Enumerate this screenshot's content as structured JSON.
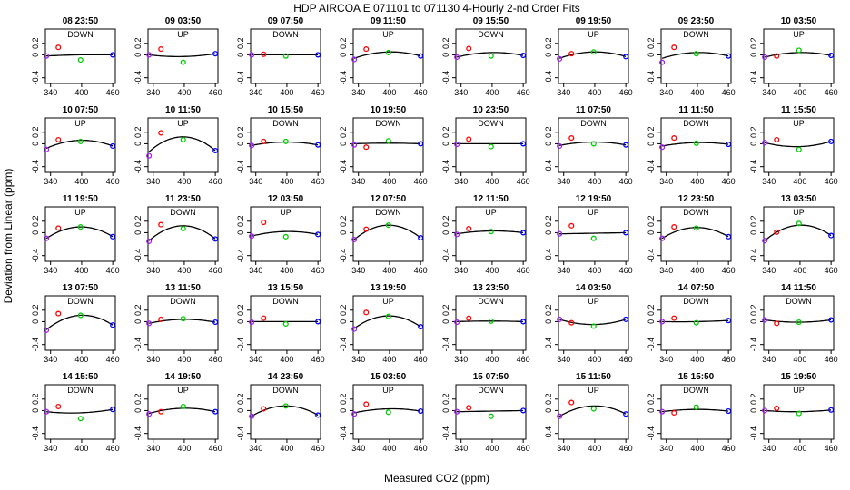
{
  "chart_data": {
    "type": "scatter",
    "title": "HDP    AIRCOA E    071101 to 071130    4-Hourly 2-nd Order Fits",
    "xlabel": "Measured CO2 (ppm)",
    "ylabel": "Deviation from Linear (ppm)",
    "xlim": [
      330,
      465
    ],
    "ylim": [
      -0.5,
      0.45
    ],
    "xticks": [
      340,
      400,
      460
    ],
    "xtick_labels": [
      "340",
      "400",
      "460"
    ],
    "yticks": [
      -0.4,
      0.0,
      0.2
    ],
    "ytick_labels": [
      "-0.4",
      "0",
      "0.2"
    ],
    "rows": 5,
    "cols": 8,
    "point_x": [
      332,
      355,
      398,
      460
    ],
    "point_colors": [
      "#a020f0",
      "#ff0000",
      "#00cc00",
      "#0000ff"
    ],
    "curve_color": "#000000",
    "panels": [
      {
        "title": "08 23:50",
        "dir": "DOWN",
        "points": [
          -0.02,
          0.13,
          -0.09,
          0.0
        ],
        "fit": [
          -0.02,
          0.0,
          0.0,
          0.0
        ]
      },
      {
        "title": "09 03:50",
        "dir": "UP",
        "points": [
          0.0,
          0.1,
          -0.13,
          0.02
        ],
        "fit": [
          0.0,
          -0.02,
          -0.03,
          0.02
        ]
      },
      {
        "title": "09 07:50",
        "dir": "DOWN",
        "points": [
          0.0,
          0.01,
          -0.02,
          0.0
        ],
        "fit": [
          0.0,
          0.0,
          0.0,
          0.0
        ]
      },
      {
        "title": "09 11:50",
        "dir": "UP",
        "points": [
          -0.08,
          0.1,
          0.04,
          -0.02
        ],
        "fit": [
          -0.06,
          0.04,
          0.05,
          -0.02
        ]
      },
      {
        "title": "09 15:50",
        "dir": "DOWN",
        "points": [
          -0.04,
          0.11,
          -0.02,
          -0.01
        ],
        "fit": [
          -0.04,
          0.03,
          0.04,
          -0.01
        ]
      },
      {
        "title": "09 19:50",
        "dir": "UP",
        "points": [
          -0.07,
          0.02,
          0.05,
          -0.03
        ],
        "fit": [
          -0.06,
          0.02,
          0.05,
          -0.03
        ]
      },
      {
        "title": "09 23:50",
        "dir": "DOWN",
        "points": [
          -0.13,
          0.13,
          0.02,
          -0.02
        ],
        "fit": [
          -0.06,
          0.03,
          0.04,
          -0.02
        ]
      },
      {
        "title": "10 03:50",
        "dir": "UP",
        "points": [
          -0.04,
          -0.02,
          0.08,
          -0.01
        ],
        "fit": [
          -0.04,
          0.02,
          0.04,
          -0.01
        ]
      },
      {
        "title": "10 07:50",
        "dir": "UP",
        "points": [
          -0.1,
          0.07,
          0.04,
          -0.04
        ],
        "fit": [
          -0.08,
          0.03,
          0.06,
          -0.04
        ]
      },
      {
        "title": "10 11:50",
        "dir": "UP",
        "points": [
          -0.21,
          0.19,
          0.07,
          -0.12
        ],
        "fit": [
          -0.14,
          0.05,
          0.12,
          -0.12
        ]
      },
      {
        "title": "10 15:50",
        "dir": "DOWN",
        "points": [
          -0.03,
          0.04,
          0.04,
          -0.02
        ],
        "fit": [
          -0.03,
          0.02,
          0.03,
          -0.02
        ]
      },
      {
        "title": "10 19:50",
        "dir": "DOWN",
        "points": [
          -0.02,
          -0.06,
          0.05,
          0.0
        ],
        "fit": [
          0.0,
          0.01,
          0.01,
          0.0
        ]
      },
      {
        "title": "10 23:50",
        "dir": "DOWN",
        "points": [
          -0.01,
          0.08,
          -0.05,
          0.0
        ],
        "fit": [
          0.0,
          0.0,
          0.0,
          0.0
        ]
      },
      {
        "title": "11 07:50",
        "dir": "DOWN",
        "points": [
          -0.04,
          0.1,
          0.0,
          -0.02
        ],
        "fit": [
          -0.03,
          0.01,
          0.03,
          -0.02
        ]
      },
      {
        "title": "11 11:50",
        "dir": "DOWN",
        "points": [
          -0.06,
          0.1,
          0.01,
          -0.01
        ],
        "fit": [
          -0.04,
          0.0,
          0.02,
          -0.01
        ]
      },
      {
        "title": "11 15:50",
        "dir": "UP",
        "points": [
          0.02,
          0.07,
          -0.1,
          0.04
        ],
        "fit": [
          0.02,
          -0.03,
          -0.05,
          0.04
        ]
      },
      {
        "title": "11 19:50",
        "dir": "UP",
        "points": [
          -0.1,
          0.08,
          0.1,
          -0.07
        ],
        "fit": [
          -0.1,
          0.05,
          0.1,
          -0.07
        ]
      },
      {
        "title": "11 23:50",
        "dir": "DOWN",
        "points": [
          -0.15,
          0.14,
          0.07,
          -0.11
        ],
        "fit": [
          -0.14,
          0.06,
          0.12,
          -0.11
        ]
      },
      {
        "title": "12 03:50",
        "dir": "UP",
        "points": [
          -0.06,
          0.18,
          -0.07,
          -0.03
        ],
        "fit": [
          -0.06,
          0.01,
          0.02,
          -0.03
        ]
      },
      {
        "title": "12 07:50",
        "dir": "DOWN",
        "points": [
          -0.12,
          0.06,
          0.13,
          -0.09
        ],
        "fit": [
          -0.12,
          0.06,
          0.13,
          -0.09
        ]
      },
      {
        "title": "12 11:50",
        "dir": "UP",
        "points": [
          -0.03,
          0.07,
          0.02,
          0.0
        ],
        "fit": [
          -0.02,
          0.02,
          0.03,
          0.0
        ]
      },
      {
        "title": "12 19:50",
        "dir": "UP",
        "points": [
          -0.02,
          0.12,
          -0.1,
          0.0
        ],
        "fit": [
          -0.02,
          -0.01,
          -0.01,
          0.0
        ]
      },
      {
        "title": "12 23:50",
        "dir": "DOWN",
        "points": [
          -0.1,
          0.1,
          0.08,
          -0.07
        ],
        "fit": [
          -0.1,
          0.05,
          0.09,
          -0.07
        ]
      },
      {
        "title": "13 03:50",
        "dir": "UP",
        "points": [
          -0.14,
          0.01,
          0.16,
          -0.05
        ],
        "fit": [
          -0.14,
          0.06,
          0.13,
          -0.05
        ]
      },
      {
        "title": "13 07:50",
        "dir": "DOWN",
        "points": [
          -0.15,
          0.14,
          0.11,
          -0.06
        ],
        "fit": [
          -0.14,
          0.07,
          0.11,
          -0.06
        ]
      },
      {
        "title": "13 11:50",
        "dir": "DOWN",
        "points": [
          -0.03,
          0.04,
          0.05,
          -0.01
        ],
        "fit": [
          -0.03,
          0.03,
          0.04,
          -0.01
        ]
      },
      {
        "title": "13 15:50",
        "dir": "DOWN",
        "points": [
          -0.01,
          0.06,
          -0.04,
          0.0
        ],
        "fit": [
          0.0,
          0.0,
          0.0,
          0.0
        ]
      },
      {
        "title": "13 19:50",
        "dir": "UP",
        "points": [
          -0.13,
          0.16,
          0.09,
          -0.09
        ],
        "fit": [
          -0.12,
          0.06,
          0.1,
          -0.09
        ]
      },
      {
        "title": "13 23:50",
        "dir": "DOWN",
        "points": [
          -0.01,
          0.06,
          0.01,
          0.0
        ],
        "fit": [
          0.0,
          0.01,
          0.01,
          0.0
        ]
      },
      {
        "title": "14 03:50",
        "dir": "UP",
        "points": [
          0.04,
          -0.02,
          -0.08,
          0.04
        ],
        "fit": [
          0.04,
          -0.03,
          -0.05,
          0.04
        ]
      },
      {
        "title": "14 07:50",
        "dir": "DOWN",
        "points": [
          0.0,
          0.06,
          -0.02,
          0.02
        ],
        "fit": [
          0.0,
          0.0,
          0.0,
          0.02
        ]
      },
      {
        "title": "14 11:50",
        "dir": "DOWN",
        "points": [
          0.03,
          -0.03,
          -0.01,
          0.03
        ],
        "fit": [
          0.03,
          0.0,
          -0.01,
          0.03
        ]
      },
      {
        "title": "14 15:50",
        "dir": "DOWN",
        "points": [
          -0.02,
          0.07,
          -0.14,
          0.02
        ],
        "fit": [
          -0.02,
          -0.04,
          -0.04,
          0.02
        ]
      },
      {
        "title": "14 19:50",
        "dir": "UP",
        "points": [
          -0.06,
          -0.02,
          0.07,
          -0.02
        ],
        "fit": [
          -0.05,
          0.02,
          0.04,
          -0.02
        ]
      },
      {
        "title": "14 23:50",
        "dir": "DOWN",
        "points": [
          -0.1,
          0.03,
          0.08,
          -0.08
        ],
        "fit": [
          -0.1,
          0.05,
          0.08,
          -0.08
        ]
      },
      {
        "title": "15 03:50",
        "dir": "UP",
        "points": [
          -0.06,
          0.11,
          -0.03,
          -0.01
        ],
        "fit": [
          -0.04,
          0.02,
          0.03,
          -0.01
        ]
      },
      {
        "title": "15 07:50",
        "dir": "DOWN",
        "points": [
          -0.02,
          0.05,
          -0.1,
          0.0
        ],
        "fit": [
          -0.02,
          -0.01,
          -0.01,
          0.0
        ]
      },
      {
        "title": "15 11:50",
        "dir": "UP",
        "points": [
          -0.1,
          0.14,
          0.03,
          -0.06
        ],
        "fit": [
          -0.1,
          0.04,
          0.08,
          -0.06
        ]
      },
      {
        "title": "15 15:50",
        "dir": "DOWN",
        "points": [
          -0.02,
          -0.04,
          0.06,
          -0.01
        ],
        "fit": [
          -0.02,
          0.01,
          0.02,
          -0.01
        ]
      },
      {
        "title": "15 19:50",
        "dir": "UP",
        "points": [
          0.0,
          0.04,
          -0.05,
          0.01
        ],
        "fit": [
          0.0,
          -0.01,
          -0.02,
          0.01
        ]
      }
    ]
  }
}
